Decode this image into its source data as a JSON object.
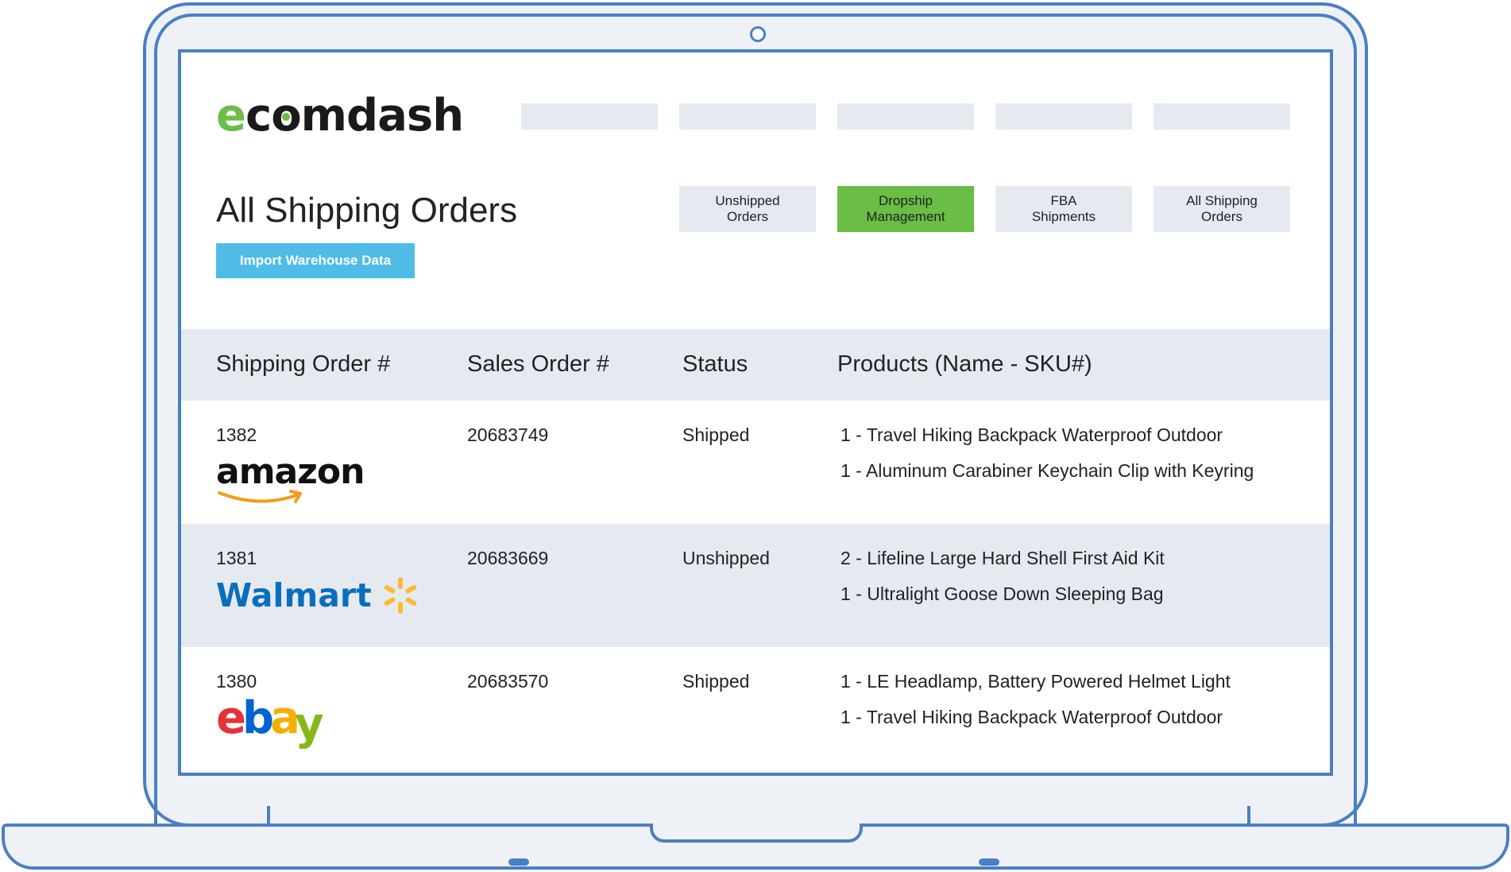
{
  "app": {
    "logo_e": "e",
    "logo_c": "c",
    "logo_o": "o",
    "logo_rest": "mdash"
  },
  "header": {
    "title": "All Shipping Orders",
    "import_button": "Import Warehouse Data"
  },
  "tabs": [
    {
      "label": "Unshipped\nOrders",
      "active": false
    },
    {
      "label": "Dropship\nManagement",
      "active": true
    },
    {
      "label": "FBA\nShipments",
      "active": false
    },
    {
      "label": "All Shipping\nOrders",
      "active": false
    }
  ],
  "table": {
    "columns": [
      "Shipping Order #",
      "Sales Order #",
      "Status",
      "Products (Name - SKU#)"
    ],
    "rows": [
      {
        "shipping_order": "1382",
        "channel": "amazon",
        "sales_order": "20683749",
        "status": "Shipped",
        "products": [
          "1  -  Travel Hiking Backpack Waterproof Outdoor",
          "1  -  Aluminum Carabiner Keychain Clip with Keyring"
        ]
      },
      {
        "shipping_order": "1381",
        "channel": "Walmart",
        "sales_order": "20683669",
        "status": "Unshipped",
        "products": [
          "2  -  Lifeline Large Hard Shell First Aid Kit",
          "1  -  Ultralight Goose Down Sleeping Bag"
        ]
      },
      {
        "shipping_order": "1380",
        "channel_letters": [
          "e",
          "b",
          "a",
          "y"
        ],
        "sales_order": "20683570",
        "status": "Shipped",
        "products": [
          "1  -  LE Headlamp, Battery Powered Helmet Light",
          "1  -  Travel Hiking Backpack Waterproof Outdoor"
        ]
      }
    ]
  },
  "colors": {
    "accent_green": "#6abd45",
    "button_blue": "#4fbce8",
    "frame_blue": "#4a7fc4",
    "row_shade": "#e5eaf1",
    "amazon_orange": "#f59a1b",
    "walmart_blue": "#0a6ebd",
    "walmart_yellow": "#fdbb30",
    "ebay_red": "#e53238",
    "ebay_blue": "#0064d2",
    "ebay_yellow": "#f5af02",
    "ebay_green": "#86b817"
  }
}
